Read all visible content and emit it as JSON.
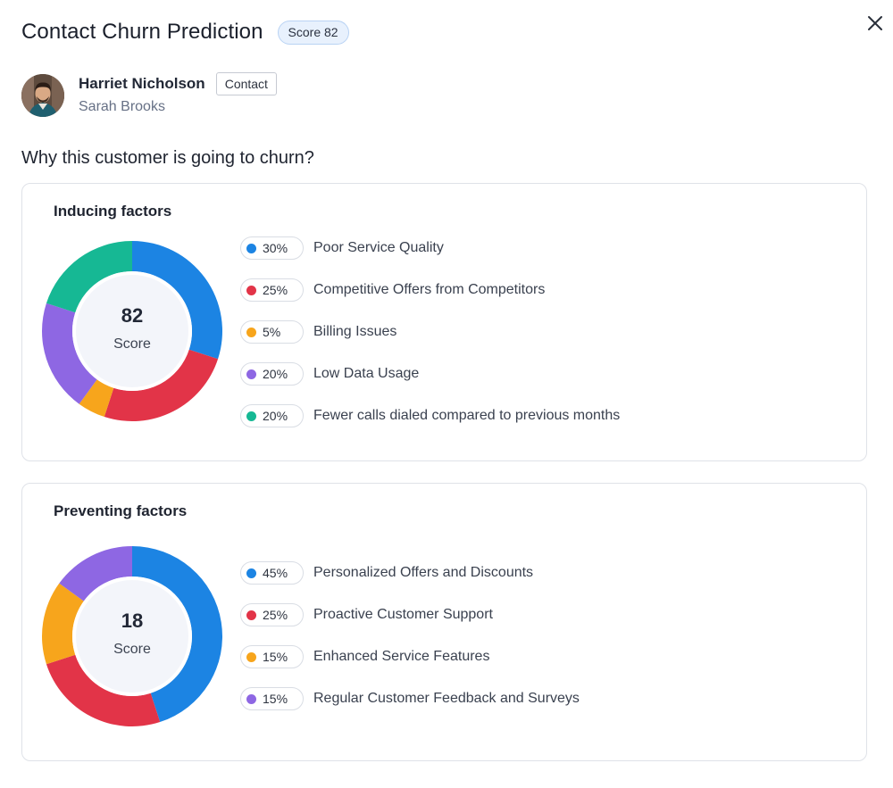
{
  "header": {
    "title": "Contact Churn Prediction",
    "score_badge": "Score 82"
  },
  "contact": {
    "name": "Harriet Nicholson",
    "type": "Contact",
    "owner": "Sarah Brooks"
  },
  "question": "Why this customer is going to churn?",
  "inducing": {
    "title": "Inducing factors",
    "score": "82",
    "score_label": "Score",
    "factors": [
      {
        "percent": "30%",
        "label": "Poor Service Quality",
        "color": "#1c84e3"
      },
      {
        "percent": "25%",
        "label": "Competitive Offers from Competitors",
        "color": "#e23448"
      },
      {
        "percent": "5%",
        "label": "Billing Issues",
        "color": "#f7a51c"
      },
      {
        "percent": "20%",
        "label": "Low Data Usage",
        "color": "#8e67e3"
      },
      {
        "percent": "20%",
        "label": "Fewer calls dialed compared to previous months",
        "color": "#16b894"
      }
    ]
  },
  "preventing": {
    "title": "Preventing factors",
    "score": "18",
    "score_label": "Score",
    "factors": [
      {
        "percent": "45%",
        "label": "Personalized Offers and Discounts",
        "color": "#1c84e3"
      },
      {
        "percent": "25%",
        "label": "Proactive Customer Support",
        "color": "#e23448"
      },
      {
        "percent": "15%",
        "label": "Enhanced Service Features",
        "color": "#f7a51c"
      },
      {
        "percent": "15%",
        "label": "Regular Customer Feedback and Surveys",
        "color": "#8e67e3"
      }
    ]
  },
  "chart_data": [
    {
      "type": "pie",
      "categories": [
        "Poor Service Quality",
        "Competitive Offers from Competitors",
        "Billing Issues",
        "Low Data Usage",
        "Fewer calls dialed compared to previous months"
      ],
      "values": [
        30,
        25,
        5,
        20,
        20
      ],
      "colors": [
        "#1c84e3",
        "#e23448",
        "#f7a51c",
        "#8e67e3",
        "#16b894"
      ]
    },
    {
      "type": "pie",
      "categories": [
        "Personalized Offers and Discounts",
        "Proactive Customer Support",
        "Enhanced Service Features",
        "Regular Customer Feedback and Surveys"
      ],
      "values": [
        45,
        25,
        15,
        15
      ],
      "colors": [
        "#1c84e3",
        "#e23448",
        "#f7a51c",
        "#8e67e3"
      ]
    }
  ]
}
